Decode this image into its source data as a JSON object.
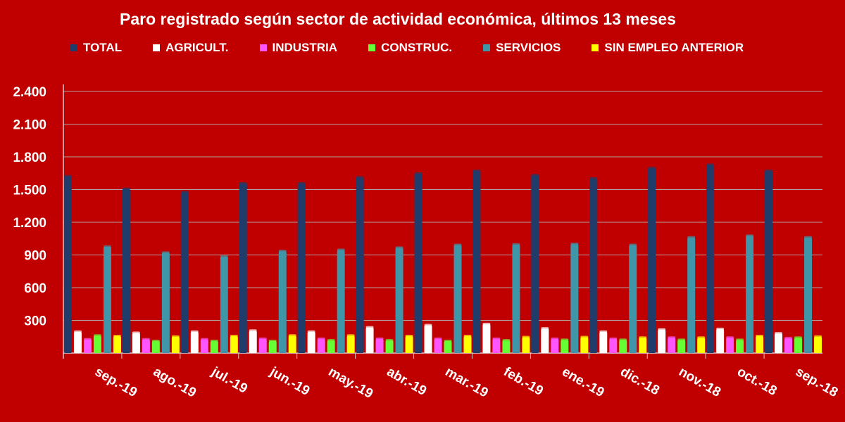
{
  "chart_data": {
    "type": "bar",
    "title": "Paro registrado según sector de actividad económica, últimos 13 meses",
    "categories": [
      "sep.-19",
      "ago.-19",
      "jul.-19",
      "jun.-19",
      "may.-19",
      "abr.-19",
      "mar.-19",
      "feb.-19",
      "ene.-19",
      "dic.-18",
      "nov.-18",
      "oct.-18",
      "sep.-18"
    ],
    "series": [
      {
        "name": "TOTAL",
        "color": "#1f3c6b",
        "values": [
          1620,
          1505,
          1475,
          1555,
          1555,
          1610,
          1645,
          1670,
          1630,
          1600,
          1695,
          1725,
          1670
        ]
      },
      {
        "name": "AGRICULT.",
        "color": "#ffffff",
        "values": [
          195,
          185,
          195,
          205,
          195,
          235,
          255,
          265,
          225,
          195,
          215,
          220,
          180
        ]
      },
      {
        "name": "INDUSTRIA",
        "color": "#ff55ff",
        "values": [
          125,
          125,
          125,
          130,
          130,
          130,
          130,
          130,
          130,
          130,
          140,
          140,
          135
        ]
      },
      {
        "name": "CONSTRUC.",
        "color": "#66ff33",
        "values": [
          160,
          110,
          110,
          110,
          115,
          115,
          110,
          115,
          120,
          120,
          120,
          120,
          140
        ]
      },
      {
        "name": "SERVICIOS",
        "color": "#3f96a8",
        "values": [
          975,
          920,
          885,
          935,
          945,
          965,
          990,
          995,
          1000,
          990,
          1060,
          1075,
          1060
        ]
      },
      {
        "name": "SIN EMPLEO ANTERIOR",
        "color": "#ffff00",
        "values": [
          155,
          150,
          155,
          160,
          160,
          155,
          155,
          145,
          145,
          140,
          140,
          155,
          150
        ]
      }
    ],
    "yticks": [
      "2.400",
      "2.100",
      "1.800",
      "1.500",
      "1.200",
      "900",
      "600",
      "300"
    ],
    "ylim": [
      0,
      2400
    ],
    "grid": true,
    "legend": "top"
  }
}
